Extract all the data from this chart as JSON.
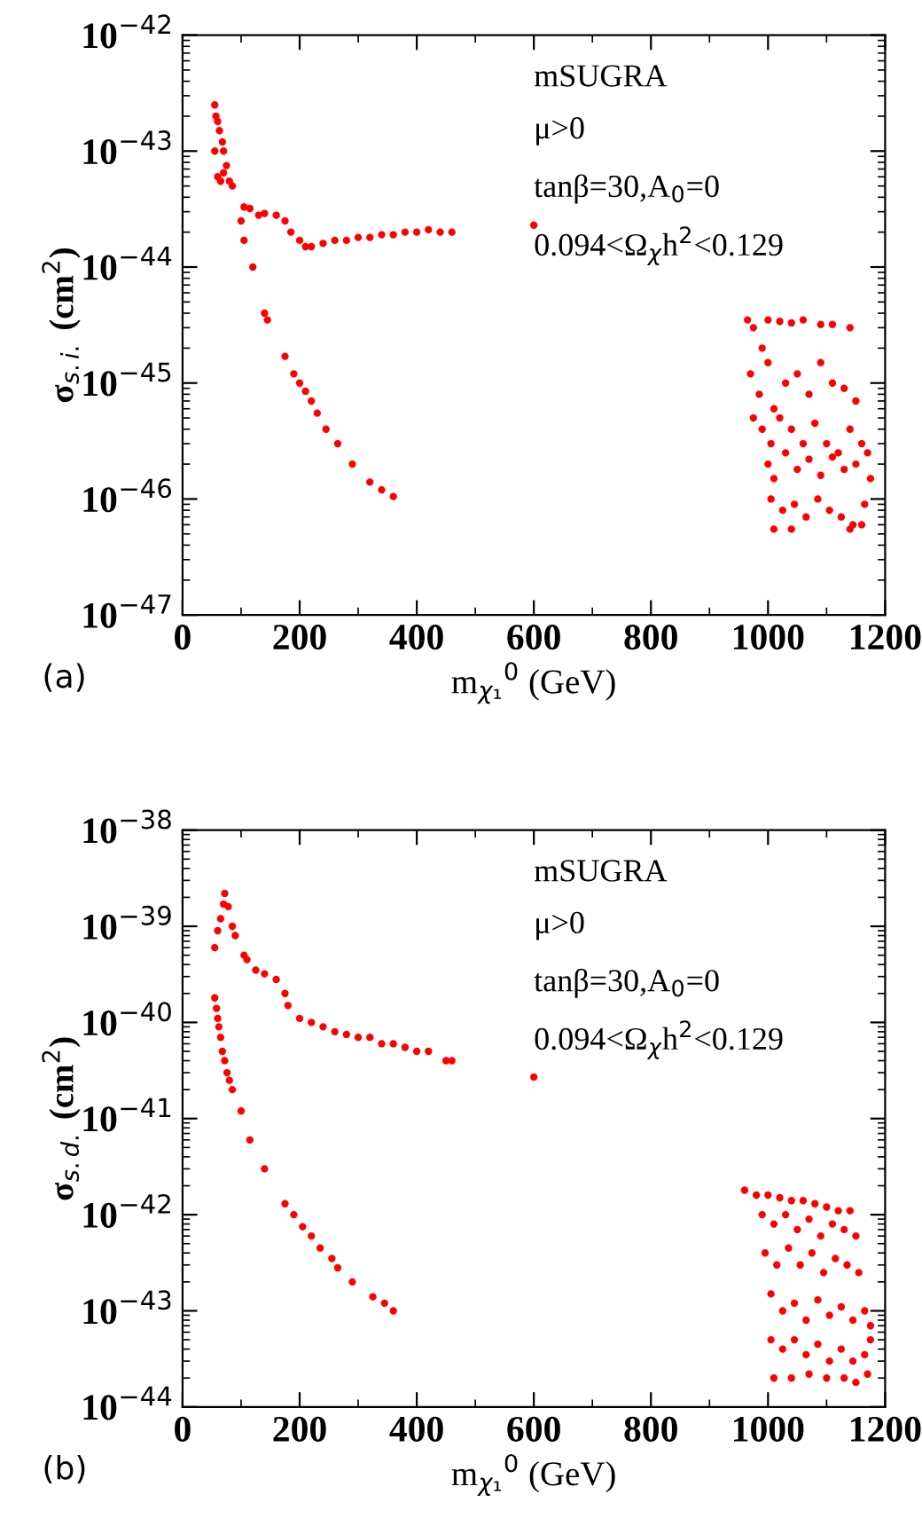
{
  "chart_data": [
    {
      "type": "scatter",
      "xlabel": "m$_{χ₁}$$^{0}$ (GeV)",
      "ylabel": "σ$_{s.i.}$ (cm$^{2}$)",
      "log": "y",
      "marker": "circle",
      "grid": false,
      "legend": false,
      "xlim": [
        0,
        1200
      ],
      "xticks": [
        0,
        200,
        400,
        600,
        800,
        1000,
        1200
      ],
      "ylim": [
        1e-47,
        1e-42
      ],
      "yticks": [
        {
          "value": 1e-47,
          "label": "10$^{−47}$"
        },
        {
          "value": 1e-46,
          "label": "10$^{−46}$"
        },
        {
          "value": 1e-45,
          "label": "10$^{−45}$"
        },
        {
          "value": 1e-44,
          "label": "10$^{−44}$"
        },
        {
          "value": 1e-43,
          "label": "10$^{−43}$"
        },
        {
          "value": 1e-42,
          "label": "10$^{−42}$"
        }
      ],
      "annotations": [
        "mSUGRA",
        "μ>0",
        "tanβ=30,A$_{0}$=0",
        "0.094<Ω$_{χ}$h$^{2}$<0.129",
        "(a)"
      ],
      "series": [
        {
          "color": "#ff0000",
          "x": [
            55,
            57,
            60,
            63,
            68,
            70,
            55,
            60,
            65,
            70,
            75,
            80,
            85,
            105,
            115,
            130,
            140,
            160,
            175,
            185,
            200,
            210,
            220,
            240,
            260,
            280,
            300,
            320,
            340,
            360,
            380,
            400,
            420,
            440,
            460,
            600
          ],
          "values": [
            2.5e-43,
            2e-43,
            1.8e-43,
            1.5e-43,
            1.2e-43,
            1e-43,
            1e-43,
            6e-44,
            5.5e-44,
            6.5e-44,
            7.5e-44,
            5.5e-44,
            5e-44,
            3.3e-44,
            3.2e-44,
            2.8e-44,
            2.9e-44,
            2.8e-44,
            2.5e-44,
            2e-44,
            1.7e-44,
            1.5e-44,
            1.5e-44,
            1.6e-44,
            1.7e-44,
            1.7e-44,
            1.8e-44,
            1.8e-44,
            1.9e-44,
            1.9e-44,
            2e-44,
            2e-44,
            2.1e-44,
            2e-44,
            2e-44,
            2.3e-44
          ]
        },
        {
          "color": "#ff0000",
          "x": [
            100,
            105,
            120,
            140,
            145,
            175,
            190,
            200,
            210,
            220,
            230,
            245,
            265,
            290,
            320,
            340,
            360
          ],
          "values": [
            2.5e-44,
            1.7e-44,
            1e-44,
            4e-45,
            3.5e-45,
            1.7e-45,
            1.2e-45,
            1e-45,
            8.5e-46,
            7e-46,
            5.5e-46,
            4e-46,
            3e-46,
            2e-46,
            1.4e-46,
            1.2e-46,
            1.05e-46
          ]
        },
        {
          "color": "#ff0000",
          "x": [
            965,
            975,
            990,
            1000,
            1020,
            1040,
            1060,
            1090,
            1110,
            1140,
            970,
            985,
            1000,
            1010,
            1030,
            1050,
            1070,
            1090,
            1110,
            1130,
            1150,
            975,
            990,
            1005,
            1020,
            1040,
            1060,
            1080,
            1100,
            1120,
            1140,
            1160,
            1000,
            1010,
            1030,
            1050,
            1070,
            1090,
            1110,
            1130,
            1150,
            1170,
            1175,
            1005,
            1025,
            1045,
            1065,
            1085,
            1105,
            1125,
            1145,
            1165,
            1010,
            1040,
            1140,
            1160
          ],
          "values": [
            3.5e-45,
            3e-45,
            2e-45,
            3.5e-45,
            3.4e-45,
            3.3e-45,
            3.5e-45,
            3.2e-45,
            3.2e-45,
            3e-45,
            1.2e-45,
            8e-46,
            1.5e-45,
            6e-46,
            1e-45,
            1.2e-45,
            8e-46,
            1.5e-45,
            1e-45,
            9e-46,
            7e-46,
            5e-46,
            4e-46,
            3e-46,
            5e-46,
            4e-46,
            3e-46,
            4.5e-46,
            3e-46,
            2.5e-46,
            4e-46,
            3e-46,
            2e-46,
            1.5e-46,
            2.5e-46,
            1.8e-46,
            2.2e-46,
            1.6e-46,
            2.3e-46,
            1.8e-46,
            2e-46,
            2.5e-46,
            1.5e-46,
            1e-46,
            8e-47,
            9e-47,
            7e-47,
            1e-46,
            8e-47,
            7e-47,
            6e-47,
            9e-47,
            5.5e-47,
            5.5e-47,
            5.5e-47,
            6e-47
          ]
        }
      ]
    },
    {
      "type": "scatter",
      "xlabel": "m$_{χ₁}$$^{0}$ (GeV)",
      "ylabel": "σ$_{s.d.}$ (cm$^{2}$)",
      "log": "y",
      "marker": "circle",
      "grid": false,
      "legend": false,
      "xlim": [
        0,
        1200
      ],
      "xticks": [
        0,
        200,
        400,
        600,
        800,
        1000,
        1200
      ],
      "ylim": [
        1e-44,
        1e-38
      ],
      "yticks": [
        {
          "value": 1e-44,
          "label": "10$^{−44}$"
        },
        {
          "value": 1e-43,
          "label": "10$^{−43}$"
        },
        {
          "value": 1e-42,
          "label": "10$^{−42}$"
        },
        {
          "value": 1e-41,
          "label": "10$^{−41}$"
        },
        {
          "value": 1e-40,
          "label": "10$^{−40}$"
        },
        {
          "value": 1e-39,
          "label": "10$^{−39}$"
        },
        {
          "value": 1e-38,
          "label": "10$^{−38}$"
        }
      ],
      "annotations": [
        "mSUGRA",
        "μ>0",
        "tanβ=30,A$_{0}$=0",
        "0.094<Ω$_{χ}$h$^{2}$<0.129",
        "(b)"
      ],
      "series": [
        {
          "color": "#ff0000",
          "x": [
            55,
            60,
            65,
            70,
            72,
            78,
            85,
            90,
            105,
            110,
            125,
            140,
            160,
            175,
            180,
            200,
            220,
            240,
            260,
            280,
            300,
            320,
            340,
            360,
            380,
            400,
            420,
            450,
            460,
            600
          ],
          "values": [
            6e-40,
            9e-40,
            1.2e-39,
            1.7e-39,
            2.2e-39,
            1.6e-39,
            1e-39,
            8e-40,
            5e-40,
            4.5e-40,
            3.5e-40,
            3.2e-40,
            2.8e-40,
            2e-40,
            1.5e-40,
            1.1e-40,
            1e-40,
            9e-41,
            8e-41,
            7.5e-41,
            7e-41,
            7e-41,
            6e-41,
            6e-41,
            5.5e-41,
            5e-41,
            5e-41,
            4e-41,
            4e-41,
            2.7e-41
          ]
        },
        {
          "color": "#ff0000",
          "x": [
            55,
            58,
            60,
            62,
            65,
            68,
            72,
            76,
            80,
            85,
            100,
            115,
            140,
            175,
            190,
            205,
            220,
            235,
            255,
            265,
            290,
            325,
            345,
            360
          ],
          "values": [
            1.8e-40,
            1.4e-40,
            1.1e-40,
            9e-41,
            7e-41,
            5e-41,
            4e-41,
            3e-41,
            2.5e-41,
            2e-41,
            1.2e-41,
            6e-42,
            3e-42,
            1.3e-42,
            1e-42,
            7.5e-43,
            6e-43,
            4.5e-43,
            3.5e-43,
            2.8e-43,
            2e-43,
            1.4e-43,
            1.2e-43,
            1e-43
          ]
        },
        {
          "color": "#ff0000",
          "x": [
            960,
            980,
            1000,
            1020,
            1040,
            1060,
            1080,
            1100,
            1120,
            1140,
            990,
            1010,
            1030,
            1050,
            1070,
            1090,
            1110,
            1130,
            1150,
            995,
            1015,
            1035,
            1055,
            1075,
            1095,
            1115,
            1135,
            1155,
            1005,
            1025,
            1045,
            1065,
            1085,
            1105,
            1125,
            1145,
            1165,
            1175,
            1005,
            1025,
            1045,
            1065,
            1085,
            1105,
            1125,
            1145,
            1165,
            1175,
            1010,
            1040,
            1070,
            1100,
            1130,
            1150,
            1170
          ],
          "values": [
            1.8e-42,
            1.6e-42,
            1.6e-42,
            1.5e-42,
            1.4e-42,
            1.4e-42,
            1.3e-42,
            1.2e-42,
            1.1e-42,
            1.1e-42,
            1e-42,
            8e-43,
            1e-42,
            7e-43,
            9e-43,
            6e-43,
            8e-43,
            7e-43,
            6e-43,
            4e-43,
            3e-43,
            4.5e-43,
            3e-43,
            4e-43,
            2.5e-43,
            3.5e-43,
            3e-43,
            2.5e-43,
            1.5e-43,
            1e-43,
            1.2e-43,
            8e-44,
            1.3e-43,
            9e-44,
            1.1e-43,
            8e-44,
            1e-43,
            7e-44,
            5e-44,
            4e-44,
            5e-44,
            3.5e-44,
            4.5e-44,
            3e-44,
            4e-44,
            3e-44,
            3.5e-44,
            5e-44,
            2e-44,
            2e-44,
            2.2e-44,
            2e-44,
            2e-44,
            1.8e-44,
            2.2e-44
          ]
        }
      ]
    }
  ]
}
